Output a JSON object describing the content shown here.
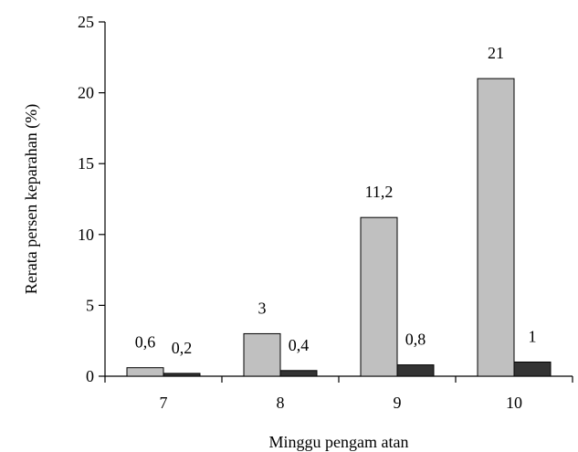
{
  "chart_data": {
    "type": "bar",
    "categories": [
      "7",
      "8",
      "9",
      "10"
    ],
    "series": [
      {
        "values": [
          0.6,
          3,
          11.2,
          21
        ],
        "labels": [
          "0,6",
          "3",
          "11,2",
          "21"
        ],
        "color": "#c0c0c0"
      },
      {
        "values": [
          0.2,
          0.4,
          0.8,
          1
        ],
        "labels": [
          "0,2",
          "0,4",
          "0,8",
          "1"
        ],
        "color": "#333333"
      }
    ],
    "xlabel": "Minggu pengam atan",
    "ylabel": "Rerata persen keparahan (%)",
    "ylim": [
      0,
      25
    ],
    "yticks": [
      0,
      5,
      10,
      15,
      20,
      25
    ],
    "grid": false,
    "legend": "none"
  }
}
